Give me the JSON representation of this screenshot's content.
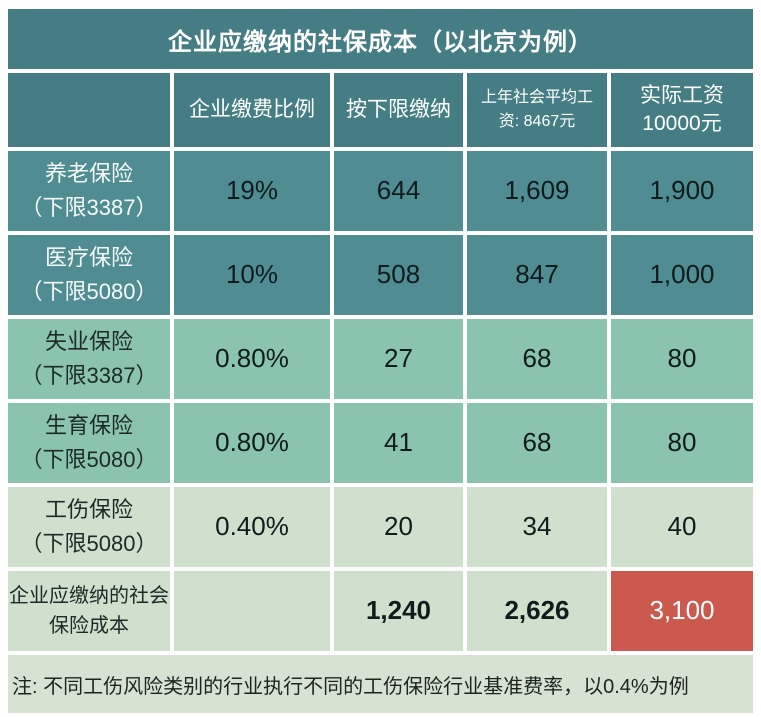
{
  "title": "企业应缴纳的社保成本（以北京为例）",
  "header": {
    "rate": "企业缴费比例",
    "lower": "按下限缴纳",
    "avg_line1": "上年社会平均工",
    "avg_line2": "资: 8467元",
    "actual_line1": "实际工资",
    "actual_line2": "10000元"
  },
  "rows": [
    {
      "name1": "养老保险",
      "name2": "（下限3387）",
      "rate": "19%",
      "lower": "644",
      "avg": "1,609",
      "actual": "1,900"
    },
    {
      "name1": "医疗保险",
      "name2": "（下限5080）",
      "rate": "10%",
      "lower": "508",
      "avg": "847",
      "actual": "1,000"
    },
    {
      "name1": "失业保险",
      "name2": "（下限3387）",
      "rate": "0.80%",
      "lower": "27",
      "avg": "68",
      "actual": "80"
    },
    {
      "name1": "生育保险",
      "name2": "（下限5080）",
      "rate": "0.80%",
      "lower": "41",
      "avg": "68",
      "actual": "80"
    },
    {
      "name1": "工伤保险",
      "name2": "（下限5080）",
      "rate": "0.40%",
      "lower": "20",
      "avg": "34",
      "actual": "40"
    }
  ],
  "total": {
    "label1": "企业应缴纳的社会",
    "label2": "保险成本",
    "rate": "",
    "lower": "1,240",
    "avg": "2,626",
    "actual": "3,100"
  },
  "note": "注: 不同工伤风险类别的行业执行不同的工伤保险行业基准费率，以0.4%为例",
  "colors": {
    "header_teal": "#447E84",
    "row_teal": "#4F8D93",
    "row_green": "#8AC3AE",
    "row_pale": "#CFE0CD",
    "note_bg": "#D6E3D2",
    "highlight_red": "#CC594E",
    "text_white": "#FFFFFF",
    "text_dark": "#121B1B"
  },
  "chart_data": {
    "type": "table",
    "title": "企业应缴纳的社保成本（以北京为例）",
    "columns": [
      "",
      "企业缴费比例",
      "按下限缴纳",
      "上年社会平均工资: 8467元",
      "实际工资10000元"
    ],
    "rows": [
      [
        "养老保险（下限3387）",
        "19%",
        644,
        1609,
        1900
      ],
      [
        "医疗保险（下限5080）",
        "10%",
        508,
        847,
        1000
      ],
      [
        "失业保险（下限3387）",
        "0.80%",
        27,
        68,
        80
      ],
      [
        "生育保险（下限5080）",
        "0.80%",
        41,
        68,
        80
      ],
      [
        "工伤保险（下限5080）",
        "0.40%",
        20,
        34,
        40
      ],
      [
        "企业应缴纳的社会保险成本",
        "",
        1240,
        2626,
        3100
      ]
    ],
    "note": "注: 不同工伤风险类别的行业执行不同的工伤保险行业基准费率，以0.4%为例",
    "highlight": {
      "cell": "企业应缴纳的社会保险成本 × 实际工资10000元",
      "value": 3100,
      "color": "#CC594E"
    }
  }
}
